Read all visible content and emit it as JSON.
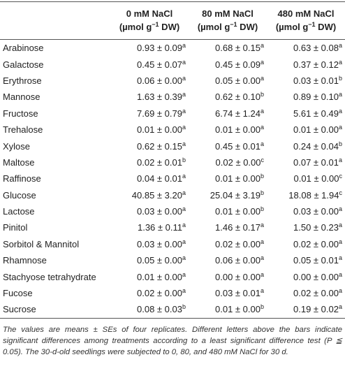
{
  "table": {
    "columns": [
      {
        "name": "0 mM NaCl",
        "unit": [
          "(µmol g",
          "−1",
          " DW)"
        ]
      },
      {
        "name": "80 mM NaCl",
        "unit": [
          "(µmol g",
          "−1",
          " DW)"
        ]
      },
      {
        "name": "480 mM NaCl",
        "unit": [
          "(µmol g",
          "−1",
          " DW)"
        ]
      }
    ],
    "rows": [
      {
        "label": "Arabinose",
        "cells": [
          [
            "0.93 ± 0.09",
            "a"
          ],
          [
            "0.68 ± 0.15",
            "a"
          ],
          [
            "0.63 ± 0.08",
            "a"
          ]
        ]
      },
      {
        "label": "Galactose",
        "cells": [
          [
            "0.45 ± 0.07",
            "a"
          ],
          [
            "0.45 ± 0.09",
            "a"
          ],
          [
            "0.37 ± 0.12",
            "a"
          ]
        ]
      },
      {
        "label": "Erythrose",
        "cells": [
          [
            "0.06 ± 0.00",
            "a"
          ],
          [
            "0.05 ± 0.00",
            "a"
          ],
          [
            "0.03 ± 0.01",
            "b"
          ]
        ]
      },
      {
        "label": "Mannose",
        "cells": [
          [
            "1.63 ± 0.39",
            "a"
          ],
          [
            "0.62 ± 0.10",
            "b"
          ],
          [
            "0.89 ± 0.10",
            "a"
          ]
        ]
      },
      {
        "label": "Fructose",
        "cells": [
          [
            "7.69 ± 0.79",
            "a"
          ],
          [
            "6.74 ± 1.24",
            "a"
          ],
          [
            "5.61 ± 0.49",
            "a"
          ]
        ]
      },
      {
        "label": "Trehalose",
        "cells": [
          [
            "0.01 ± 0.00",
            "a"
          ],
          [
            "0.01 ± 0.00",
            "a"
          ],
          [
            "0.01 ± 0.00",
            "a"
          ]
        ]
      },
      {
        "label": "Xylose",
        "cells": [
          [
            "0.62 ± 0.15",
            "a"
          ],
          [
            "0.45 ± 0.01",
            "a"
          ],
          [
            "0.24 ± 0.04",
            "b"
          ]
        ]
      },
      {
        "label": "Maltose",
        "cells": [
          [
            "0.02 ± 0.01",
            "b"
          ],
          [
            "0.02 ± 0.00",
            "c"
          ],
          [
            "0.07 ± 0.01",
            "a"
          ]
        ]
      },
      {
        "label": "Raffinose",
        "cells": [
          [
            "0.04 ± 0.01",
            "a"
          ],
          [
            "0.01 ± 0.00",
            "b"
          ],
          [
            "0.01 ± 0.00",
            "c"
          ]
        ]
      },
      {
        "label": "Glucose",
        "cells": [
          [
            "40.85 ± 3.20",
            "a"
          ],
          [
            "25.04 ± 3.19",
            "b"
          ],
          [
            "18.08 ± 1.94",
            "c"
          ]
        ]
      },
      {
        "label": "Lactose",
        "cells": [
          [
            "0.03 ± 0.00",
            "a"
          ],
          [
            "0.01 ± 0.00",
            "b"
          ],
          [
            "0.03 ± 0.00",
            "a"
          ]
        ]
      },
      {
        "label": "Pinitol",
        "cells": [
          [
            "1.36 ± 0.11",
            "a"
          ],
          [
            "1.46 ± 0.17",
            "a"
          ],
          [
            "1.50 ± 0.23",
            "a"
          ]
        ]
      },
      {
        "label": "Sorbitol & Mannitol",
        "cells": [
          [
            "0.03 ± 0.00",
            "a"
          ],
          [
            "0.02 ± 0.00",
            "a"
          ],
          [
            "0.02 ± 0.00",
            "a"
          ]
        ]
      },
      {
        "label": "Rhamnose",
        "cells": [
          [
            "0.05 ± 0.00",
            "a"
          ],
          [
            "0.06 ± 0.00",
            "a"
          ],
          [
            "0.05 ± 0.01",
            "a"
          ]
        ]
      },
      {
        "label": "Stachyose tetrahydrate",
        "cells": [
          [
            "0.01 ± 0.00",
            "a"
          ],
          [
            "0.00 ± 0.00",
            "a"
          ],
          [
            "0.00 ± 0.00",
            "a"
          ]
        ]
      },
      {
        "label": "Fucose",
        "cells": [
          [
            "0.02 ± 0.00",
            "a"
          ],
          [
            "0.03 ± 0.01",
            "a"
          ],
          [
            "0.02 ± 0.00",
            "a"
          ]
        ]
      },
      {
        "label": "Sucrose",
        "cells": [
          [
            "0.08 ± 0.03",
            "b"
          ],
          [
            "0.01 ± 0.00",
            "b"
          ],
          [
            "0.19 ± 0.02",
            "a"
          ]
        ]
      }
    ],
    "footnote": "The values are means ± SEs of four replicates. Different letters above the bars indicate significant differences among treatments according to a least significant difference test (P ≦ 0.05). The 30-d-old seedlings were subjected to 0, 80, and 480 mM NaCl for 30 d."
  }
}
